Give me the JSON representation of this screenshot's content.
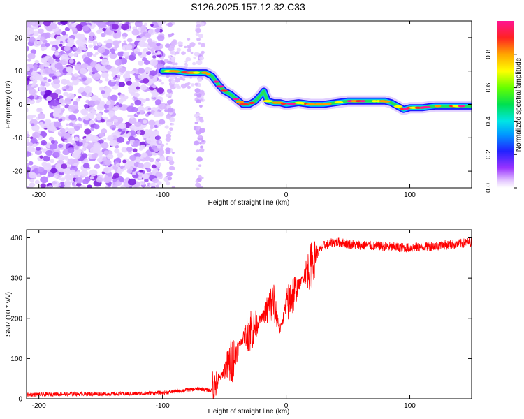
{
  "page_title": "S126.2025.157.12.32.C33",
  "colors": {
    "trace": "#ff0000",
    "frame": "#000000",
    "background": "#ffffff",
    "scatter": "#8a2be2"
  },
  "chart_data": [
    {
      "type": "heatmap",
      "title": "S126.2025.157.12.32.C33",
      "xlabel": "Height of straight line (km)",
      "ylabel": "Frequency (Hz)",
      "xlim": [
        -210,
        150
      ],
      "ylim": [
        -25,
        25
      ],
      "xticks": [
        -200,
        -100,
        0,
        100
      ],
      "yticks": [
        -20,
        -10,
        0,
        10,
        20
      ],
      "colorbar": {
        "label": "Normalized spectral amplitude",
        "range": [
          0,
          1
        ],
        "ticks": [
          0.0,
          0.2,
          0.4,
          0.6,
          0.8
        ]
      },
      "ridge": {
        "description": "Dominant frequency track vs height",
        "x": [
          -100,
          -90,
          -80,
          -72,
          -65,
          -60,
          -55,
          -50,
          -45,
          -40,
          -35,
          -30,
          -25,
          -20,
          -18,
          -15,
          -10,
          -5,
          0,
          10,
          20,
          30,
          40,
          50,
          60,
          70,
          80,
          85,
          90,
          95,
          100,
          110,
          120,
          130,
          140,
          150
        ],
        "y": [
          10,
          10,
          9.5,
          9.5,
          9.5,
          8.5,
          6,
          4,
          3,
          1.5,
          0,
          0,
          1,
          3,
          4,
          1,
          0.5,
          0.5,
          0,
          0.5,
          0,
          0,
          0.5,
          1,
          1,
          1,
          1,
          0.5,
          -0.5,
          -1.5,
          -1,
          -1,
          -0.5,
          -0.5,
          -0.5,
          -0.5
        ]
      }
    },
    {
      "type": "line",
      "xlabel": "Height of straight line (km)",
      "ylabel": "SNR (10 * v/v)",
      "xlim": [
        -210,
        150
      ],
      "ylim": [
        0,
        420
      ],
      "xticks": [
        -200,
        -100,
        0,
        100
      ],
      "yticks": [
        0,
        100,
        200,
        300,
        400
      ],
      "series": [
        {
          "name": "SNR",
          "color": "#ff0000",
          "x": [
            -210,
            -180,
            -150,
            -120,
            -100,
            -90,
            -80,
            -70,
            -60,
            -55,
            -50,
            -45,
            -40,
            -35,
            -30,
            -25,
            -20,
            -15,
            -10,
            -5,
            0,
            5,
            10,
            15,
            20,
            25,
            30,
            40,
            50,
            60,
            80,
            100,
            120,
            140,
            150
          ],
          "y": [
            10,
            12,
            12,
            13,
            15,
            18,
            22,
            25,
            20,
            45,
            70,
            90,
            120,
            150,
            170,
            180,
            200,
            220,
            240,
            170,
            230,
            260,
            280,
            310,
            330,
            360,
            380,
            390,
            385,
            382,
            378,
            375,
            380,
            385,
            390
          ]
        }
      ]
    }
  ]
}
